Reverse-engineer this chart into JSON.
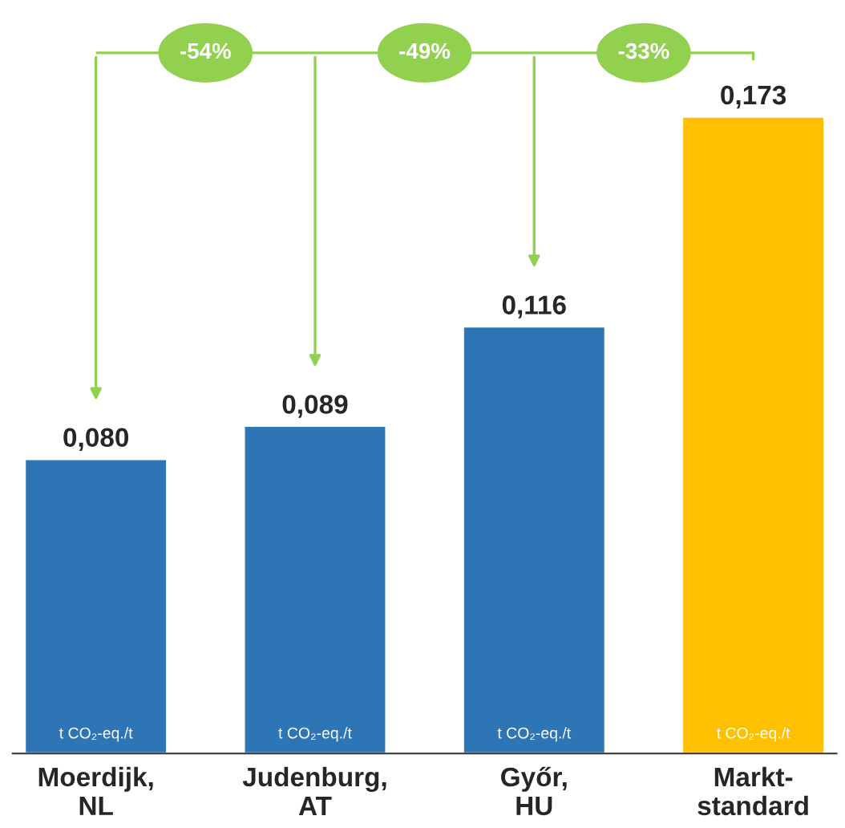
{
  "chart_data": {
    "type": "bar",
    "categories": [
      "Moerdijk,\nNL",
      "Judenburg,\nAT",
      "Győr,\nHU",
      "Markt-\nstandard"
    ],
    "values": [
      0.08,
      0.089,
      0.116,
      0.173
    ],
    "colors": [
      "#2e75b6",
      "#2e75b6",
      "#2e75b6",
      "#ffc000"
    ],
    "value_labels": [
      "0,080",
      "0,089",
      "0,116",
      "0,173"
    ],
    "annotations": [
      "-54%",
      "-49%",
      "-33%",
      {
        "text": "t CO₂-eq./t",
        "x": "Moerdijk,\nNL",
        "y": 0
      },
      {
        "text": "t CO₂-eq./t",
        "x": "Judenburg,\nAT",
        "y": 0
      },
      {
        "text": "t CO₂-eq./t",
        "x": "Győr,\nHU",
        "y": 0
      },
      {
        "text": "t CO₂-eq./t",
        "x": "Markt-\nstandard",
        "y": 0
      }
    ]
  }
}
